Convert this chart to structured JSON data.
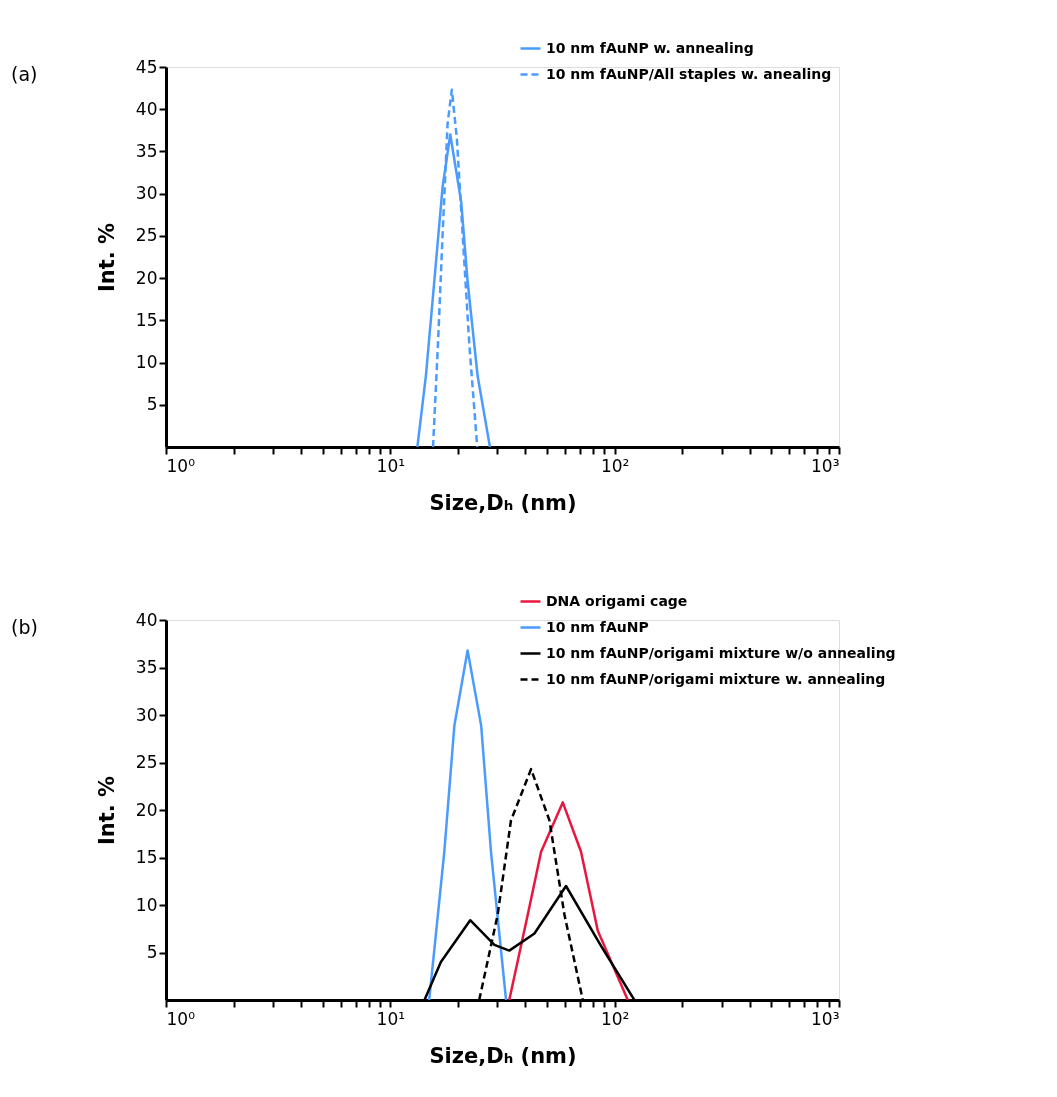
{
  "chart_data": [
    {
      "type": "line",
      "title": "(a)",
      "xlabel": "Size,Dₕ (nm)",
      "ylabel": "Int. %",
      "log": "x",
      "legend": "top right",
      "grid": false,
      "xlim": [
        1,
        1000
      ],
      "xticks": [
        {
          "value": 1,
          "label": "10⁰"
        },
        {
          "value": 2,
          "label": null
        },
        {
          "value": 3,
          "label": null
        },
        {
          "value": 4,
          "label": null
        },
        {
          "value": 5,
          "label": null
        },
        {
          "value": 6,
          "label": null
        },
        {
          "value": 7,
          "label": null
        },
        {
          "value": 8,
          "label": null
        },
        {
          "value": 9,
          "label": null
        },
        {
          "value": 10,
          "label": "10¹"
        },
        {
          "value": 20,
          "label": null
        },
        {
          "value": 30,
          "label": null
        },
        {
          "value": 40,
          "label": null
        },
        {
          "value": 50,
          "label": null
        },
        {
          "value": 60,
          "label": null
        },
        {
          "value": 70,
          "label": null
        },
        {
          "value": 80,
          "label": null
        },
        {
          "value": 90,
          "label": null
        },
        {
          "value": 100,
          "label": "10²"
        },
        {
          "value": 200,
          "label": null
        },
        {
          "value": 300,
          "label": null
        },
        {
          "value": 400,
          "label": null
        },
        {
          "value": 500,
          "label": null
        },
        {
          "value": 600,
          "label": null
        },
        {
          "value": 700,
          "label": null
        },
        {
          "value": 800,
          "label": null
        },
        {
          "value": 900,
          "label": null
        },
        {
          "value": 1000,
          "label": "10³"
        }
      ],
      "ylim": [
        0,
        45
      ],
      "yticks": [
        5,
        10,
        15,
        20,
        25,
        30,
        35,
        40,
        45
      ],
      "series": [
        {
          "name": "10 nm fAuNP w. annealing",
          "color": "#4b9bff",
          "line_style": "solid",
          "x": [
            13.2,
            14.4,
            15.7,
            17.1,
            18.5,
            20.7,
            22.1,
            24.5,
            27.8
          ],
          "values": [
            0,
            8.4,
            19.6,
            30.8,
            37.0,
            29.0,
            19.6,
            8.4,
            0
          ]
        },
        {
          "name": "10 nm fAuNP/All staples w. anealing",
          "color": "#4b9bff",
          "line_style": "dashed",
          "x": [
            15.5,
            16.3,
            17.1,
            18.0,
            18.8,
            19.8,
            21.0,
            22.5,
            24.4
          ],
          "values": [
            0,
            12.1,
            25.2,
            38.3,
            42.3,
            36.5,
            25.2,
            12.1,
            0
          ]
        }
      ]
    },
    {
      "type": "line",
      "title": "(b)",
      "xlabel": "Size,Dₕ (nm)",
      "ylabel": "Int. %",
      "log": "x",
      "legend": "top right",
      "grid": false,
      "xlim": [
        1,
        1000
      ],
      "xticks": [
        {
          "value": 1,
          "label": "10⁰"
        },
        {
          "value": 2,
          "label": null
        },
        {
          "value": 3,
          "label": null
        },
        {
          "value": 4,
          "label": null
        },
        {
          "value": 5,
          "label": null
        },
        {
          "value": 6,
          "label": null
        },
        {
          "value": 7,
          "label": null
        },
        {
          "value": 8,
          "label": null
        },
        {
          "value": 9,
          "label": null
        },
        {
          "value": 10,
          "label": "10¹"
        },
        {
          "value": 20,
          "label": null
        },
        {
          "value": 30,
          "label": null
        },
        {
          "value": 40,
          "label": null
        },
        {
          "value": 50,
          "label": null
        },
        {
          "value": 60,
          "label": null
        },
        {
          "value": 70,
          "label": null
        },
        {
          "value": 80,
          "label": null
        },
        {
          "value": 90,
          "label": null
        },
        {
          "value": 100,
          "label": "10²"
        },
        {
          "value": 200,
          "label": null
        },
        {
          "value": 300,
          "label": null
        },
        {
          "value": 400,
          "label": null
        },
        {
          "value": 500,
          "label": null
        },
        {
          "value": 600,
          "label": null
        },
        {
          "value": 700,
          "label": null
        },
        {
          "value": 800,
          "label": null
        },
        {
          "value": 900,
          "label": null
        },
        {
          "value": 1000,
          "label": "10³"
        }
      ],
      "ylim": [
        0,
        40
      ],
      "yticks": [
        5,
        10,
        15,
        20,
        25,
        30,
        35,
        40
      ],
      "series": [
        {
          "name": "DNA origami cage",
          "color": "#e8173f",
          "line_style": "solid",
          "x": [
            33.9,
            41.0,
            47.0,
            58.7,
            70.8,
            84.1,
            114.4
          ],
          "values": [
            0,
            9.0,
            15.6,
            20.8,
            15.6,
            7.3,
            0
          ]
        },
        {
          "name": "10 nm fAuNP",
          "color": "#4b9bff",
          "line_style": "solid",
          "x": [
            14.9,
            17.4,
            19.3,
            22.1,
            25.4,
            28.1,
            32.8
          ],
          "values": [
            0,
            15.6,
            28.9,
            36.8,
            28.9,
            15.6,
            0
          ]
        },
        {
          "name": "10 nm fAuNP/origami mixture w/o annealing",
          "color": "#000000",
          "line_style": "solid",
          "x": [
            14.2,
            16.8,
            22.7,
            29.1,
            33.9,
            43.9,
            60.7,
            86.9,
            122.4
          ],
          "values": [
            0,
            4.0,
            8.4,
            5.8,
            5.2,
            7.0,
            12.0,
            5.7,
            0
          ]
        },
        {
          "name": "10 nm fAuNP/origami mixture w. annealing",
          "color": "#000000",
          "line_style": "dashed",
          "x": [
            24.9,
            30.1,
            34.5,
            42.4,
            51.2,
            59.7,
            72.1
          ],
          "values": [
            0,
            9.0,
            18.9,
            24.3,
            18.9,
            9.0,
            0
          ]
        }
      ]
    }
  ]
}
